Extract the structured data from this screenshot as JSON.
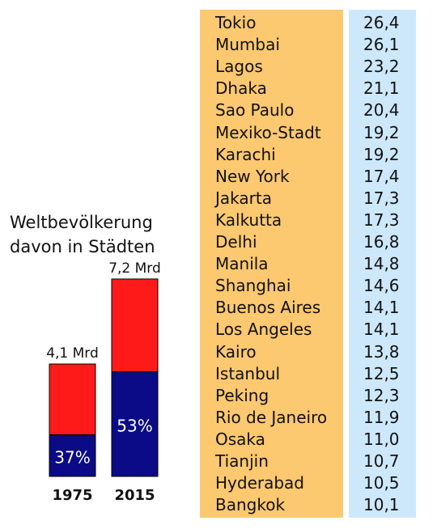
{
  "colors": {
    "city_column_bg": "#fcc870",
    "value_column_bg": "#cde8fb",
    "world_population": "#ff1a1a",
    "urban_population": "#0b0b87"
  },
  "title_lines": [
    "Weltbevölkerung",
    "davon in Städten"
  ],
  "chart_data": {
    "type": "bar",
    "stacked": true,
    "title": "Weltbevölkerung davon in Städten",
    "categories": [
      "1975",
      "2015"
    ],
    "totals": [
      4.1,
      7.2
    ],
    "total_labels": [
      "4,1 Mrd",
      "7,2 Mrd"
    ],
    "urban_share_percent": [
      37,
      53
    ],
    "urban_share_labels": [
      "37%",
      "53%"
    ]
  },
  "cities": [
    {
      "name": "Tokio",
      "value": "26,4"
    },
    {
      "name": "Mumbai",
      "value": "26,1"
    },
    {
      "name": "Lagos",
      "value": "23,2"
    },
    {
      "name": "Dhaka",
      "value": "21,1"
    },
    {
      "name": "Sao Paulo",
      "value": "20,4"
    },
    {
      "name": "Mexiko-Stadt",
      "value": "19,2"
    },
    {
      "name": "Karachi",
      "value": "19,2"
    },
    {
      "name": "New York",
      "value": "17,4"
    },
    {
      "name": "Jakarta",
      "value": "17,3"
    },
    {
      "name": "Kalkutta",
      "value": "17,3"
    },
    {
      "name": "Delhi",
      "value": "16,8"
    },
    {
      "name": "Manila",
      "value": "14,8"
    },
    {
      "name": "Shanghai",
      "value": "14,6"
    },
    {
      "name": "Buenos Aires",
      "value": "14,1"
    },
    {
      "name": "Los Angeles",
      "value": "14,1"
    },
    {
      "name": "Kairo",
      "value": "13,8"
    },
    {
      "name": "Istanbul",
      "value": "12,5"
    },
    {
      "name": "Peking",
      "value": "12,3"
    },
    {
      "name": "Rio de Janeiro",
      "value": "11,9"
    },
    {
      "name": "Osaka",
      "value": "11,0"
    },
    {
      "name": "Tianjin",
      "value": "10,7"
    },
    {
      "name": "Hyderabad",
      "value": "10,5"
    },
    {
      "name": "Bangkok",
      "value": "10,1"
    }
  ]
}
